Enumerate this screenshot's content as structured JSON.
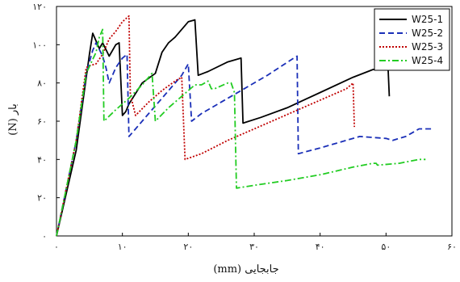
{
  "chart_data": {
    "type": "line",
    "title": "",
    "xlabel": "جابجایی (mm)",
    "ylabel": "بار (N)",
    "xlim": [
      0,
      60
    ],
    "ylim": [
      0,
      120
    ],
    "xticks": [
      0,
      10,
      20,
      30,
      40,
      50,
      60
    ],
    "xtick_labels": [
      "۰",
      "۱۰",
      "۲۰",
      "۳۰",
      "۴۰",
      "۵۰",
      "۶۰"
    ],
    "yticks": [
      0,
      20,
      40,
      60,
      80,
      100,
      120
    ],
    "ytick_labels": [
      "۰",
      "۲۰",
      "۴۰",
      "۶۰",
      "۸۰",
      "۱۰۰",
      "۱۲۰"
    ],
    "grid": false,
    "legend_position": "top-right",
    "series": [
      {
        "name": "W25-1",
        "color": "#000000",
        "dash": "solid",
        "points": [
          [
            0,
            0
          ],
          [
            3,
            45
          ],
          [
            5,
            95
          ],
          [
            5.5,
            106
          ],
          [
            6.5,
            98
          ],
          [
            7,
            101
          ],
          [
            8,
            94
          ],
          [
            9,
            100
          ],
          [
            9.5,
            101
          ],
          [
            10,
            63
          ],
          [
            10.5,
            65
          ],
          [
            11,
            69
          ],
          [
            13,
            80
          ],
          [
            15,
            85
          ],
          [
            16,
            96
          ],
          [
            17,
            101
          ],
          [
            18,
            104
          ],
          [
            20,
            112
          ],
          [
            21,
            113
          ],
          [
            21.5,
            84
          ],
          [
            23,
            86
          ],
          [
            26,
            91
          ],
          [
            28,
            93
          ],
          [
            28.3,
            59
          ],
          [
            31,
            62
          ],
          [
            35,
            67
          ],
          [
            40,
            75
          ],
          [
            45,
            83
          ],
          [
            48,
            87
          ],
          [
            49.5,
            88
          ],
          [
            50.3,
            88.5
          ],
          [
            50.5,
            73
          ]
        ]
      },
      {
        "name": "W25-2",
        "color": "#1a2fb8",
        "dash": "dashed",
        "points": [
          [
            0,
            0
          ],
          [
            3,
            50
          ],
          [
            4.5,
            85
          ],
          [
            5.5,
            97
          ],
          [
            6,
            101
          ],
          [
            7,
            94
          ],
          [
            7.5,
            88
          ],
          [
            8,
            80
          ],
          [
            9,
            88
          ],
          [
            10,
            93
          ],
          [
            10.7,
            95
          ],
          [
            11,
            52
          ],
          [
            12,
            56
          ],
          [
            14,
            64
          ],
          [
            16,
            72
          ],
          [
            19,
            84
          ],
          [
            20,
            90
          ],
          [
            20.5,
            60
          ],
          [
            22,
            64
          ],
          [
            26,
            72
          ],
          [
            32,
            84
          ],
          [
            36,
            93
          ],
          [
            36.5,
            94
          ],
          [
            36.7,
            43
          ],
          [
            40,
            46
          ],
          [
            43,
            49
          ],
          [
            46,
            52
          ],
          [
            50,
            51
          ],
          [
            51,
            50
          ],
          [
            53,
            52
          ],
          [
            55,
            56
          ],
          [
            57,
            56
          ]
        ]
      },
      {
        "name": "W25-3",
        "color": "#c00000",
        "dash": "dotted",
        "points": [
          [
            0,
            0
          ],
          [
            3,
            50
          ],
          [
            4.5,
            88
          ],
          [
            5,
            89
          ],
          [
            6,
            90
          ],
          [
            7,
            95
          ],
          [
            8,
            103
          ],
          [
            9,
            107
          ],
          [
            10,
            112
          ],
          [
            11,
            115
          ],
          [
            11.2,
            74
          ],
          [
            12,
            63
          ],
          [
            14,
            70
          ],
          [
            16,
            76
          ],
          [
            18,
            81
          ],
          [
            19,
            83
          ],
          [
            19.5,
            40
          ],
          [
            22,
            43
          ],
          [
            26,
            50
          ],
          [
            30,
            56
          ],
          [
            34,
            62
          ],
          [
            38,
            68
          ],
          [
            42,
            74
          ],
          [
            44,
            77
          ],
          [
            45,
            80
          ],
          [
            45.2,
            57
          ]
        ]
      },
      {
        "name": "W25-4",
        "color": "#22cc22",
        "dash": "dashdot",
        "points": [
          [
            0,
            0
          ],
          [
            3,
            50
          ],
          [
            4.5,
            85
          ],
          [
            6,
            96
          ],
          [
            6.5,
            104
          ],
          [
            7,
            108
          ],
          [
            7.2,
            60
          ],
          [
            9,
            66
          ],
          [
            11,
            72
          ],
          [
            13,
            79
          ],
          [
            14.5,
            85
          ],
          [
            15,
            60
          ],
          [
            17,
            67
          ],
          [
            19,
            73
          ],
          [
            21,
            79
          ],
          [
            22,
            79
          ],
          [
            23,
            81
          ],
          [
            23.5,
            77
          ],
          [
            24,
            77
          ],
          [
            26,
            80
          ],
          [
            26.5,
            80
          ],
          [
            27,
            75
          ],
          [
            27.3,
            25
          ],
          [
            31,
            27
          ],
          [
            35,
            29
          ],
          [
            40,
            32
          ],
          [
            45,
            36
          ],
          [
            48,
            38
          ],
          [
            48.5,
            38
          ],
          [
            48.7,
            37
          ],
          [
            52,
            38
          ],
          [
            55,
            40
          ],
          [
            56,
            40
          ]
        ]
      }
    ]
  }
}
